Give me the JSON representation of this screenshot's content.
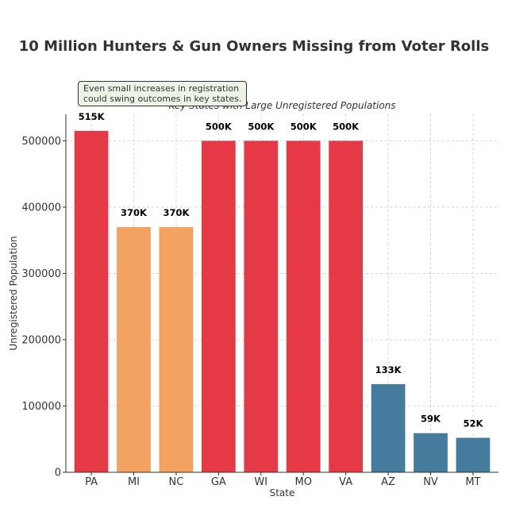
{
  "chart_data": {
    "type": "bar",
    "title": "10 Million Hunters & Gun Owners Missing from Voter Rolls",
    "subtitle": "Key States with Large Unregistered Populations",
    "xlabel": "State",
    "ylabel": "Unregistered Population",
    "categories": [
      "PA",
      "MI",
      "NC",
      "GA",
      "WI",
      "MO",
      "VA",
      "AZ",
      "NV",
      "MT"
    ],
    "values": [
      515000,
      370000,
      370000,
      500000,
      500000,
      500000,
      500000,
      133000,
      59000,
      52000
    ],
    "data_labels": [
      "515K",
      "370K",
      "370K",
      "500K",
      "500K",
      "500K",
      "500K",
      "133K",
      "59K",
      "52K"
    ],
    "bar_colors": [
      "#e63946",
      "#f4a261",
      "#f4a261",
      "#e63946",
      "#e63946",
      "#e63946",
      "#e63946",
      "#457b9d",
      "#457b9d",
      "#457b9d"
    ],
    "yticks": [
      0,
      100000,
      200000,
      300000,
      400000,
      500000
    ],
    "ylim": [
      0,
      540000
    ],
    "grid": true,
    "annotation": [
      "Even small increases in registration",
      "could swing outcomes in key states."
    ]
  }
}
